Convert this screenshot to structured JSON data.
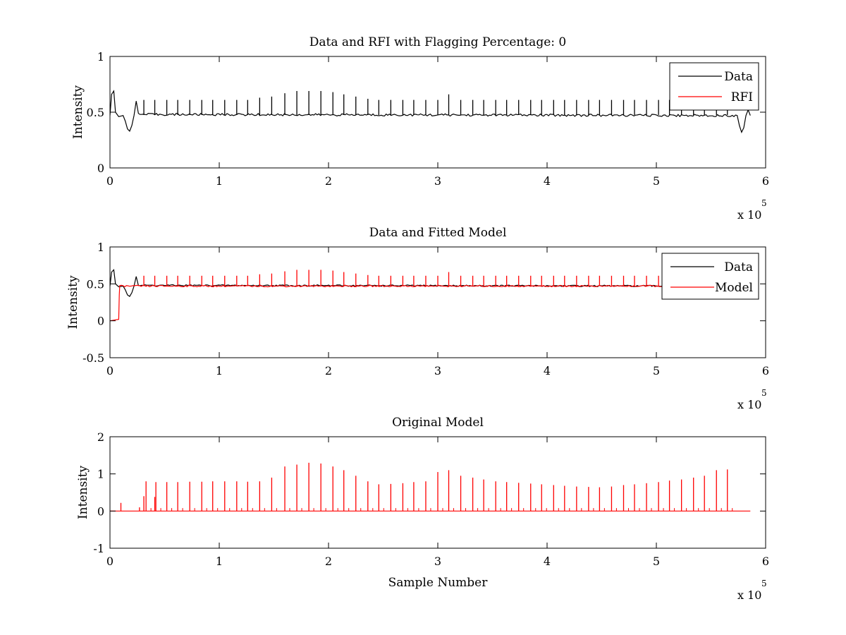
{
  "figure": {
    "background": "#ffffff",
    "colors": {
      "data": "#000000",
      "model": "#ff0000",
      "axes": "#000000"
    }
  },
  "chart_data": [
    {
      "type": "line",
      "title": "Data and RFI with Flagging Percentage: 0",
      "xlabel": "",
      "ylabel": "Intensity",
      "xlim": [
        0,
        600000
      ],
      "ylim": [
        0,
        1
      ],
      "xticks": [
        0,
        1,
        2,
        3,
        4,
        5,
        6
      ],
      "xtick_labels": [
        "0",
        "1",
        "2",
        "3",
        "4",
        "5",
        "6"
      ],
      "yticks": [
        0,
        0.5,
        1
      ],
      "ytick_labels": [
        "0",
        "0.5",
        "1"
      ],
      "x_exponent": {
        "base": "x 10",
        "power": "5"
      },
      "grid": false,
      "legend": {
        "location": "top-right",
        "entries": [
          "Data",
          "RFI"
        ]
      },
      "series": [
        {
          "name": "Data",
          "color": "#000000",
          "baseline": 0.475,
          "points": [
            [
              0,
              0.47
            ],
            [
              1500,
              0.66
            ],
            [
              3500,
              0.69
            ],
            [
              5000,
              0.5
            ],
            [
              8000,
              0.46
            ],
            [
              12000,
              0.47
            ],
            [
              14000,
              0.42
            ],
            [
              16000,
              0.35
            ],
            [
              18000,
              0.33
            ],
            [
              20000,
              0.38
            ],
            [
              22000,
              0.47
            ],
            [
              24000,
              0.6
            ],
            [
              26000,
              0.48
            ],
            [
              574000,
              0.47
            ],
            [
              576000,
              0.38
            ],
            [
              578000,
              0.32
            ],
            [
              580000,
              0.36
            ],
            [
              582000,
              0.47
            ],
            [
              584000,
              0.52
            ],
            [
              586000,
              0.47
            ]
          ],
          "spikes": [
            [
              31000,
              0.61
            ],
            [
              41000,
              0.61
            ],
            [
              52000,
              0.61
            ],
            [
              62000,
              0.61
            ],
            [
              73000,
              0.61
            ],
            [
              84000,
              0.61
            ],
            [
              94000,
              0.61
            ],
            [
              105000,
              0.61
            ],
            [
              116000,
              0.61
            ],
            [
              126000,
              0.61
            ],
            [
              137000,
              0.63
            ],
            [
              148000,
              0.64
            ],
            [
              160000,
              0.67
            ],
            [
              171000,
              0.69
            ],
            [
              182000,
              0.69
            ],
            [
              193000,
              0.69
            ],
            [
              204000,
              0.68
            ],
            [
              214000,
              0.66
            ],
            [
              225000,
              0.64
            ],
            [
              236000,
              0.62
            ],
            [
              246000,
              0.61
            ],
            [
              257000,
              0.61
            ],
            [
              268000,
              0.61
            ],
            [
              278000,
              0.61
            ],
            [
              289000,
              0.61
            ],
            [
              300000,
              0.61
            ],
            [
              310000,
              0.66
            ],
            [
              321000,
              0.61
            ],
            [
              332000,
              0.61
            ],
            [
              342000,
              0.61
            ],
            [
              353000,
              0.61
            ],
            [
              363000,
              0.61
            ],
            [
              374000,
              0.61
            ],
            [
              385000,
              0.61
            ],
            [
              395000,
              0.61
            ],
            [
              406000,
              0.61
            ],
            [
              416000,
              0.61
            ],
            [
              427000,
              0.61
            ],
            [
              438000,
              0.61
            ],
            [
              448000,
              0.61
            ],
            [
              459000,
              0.61
            ],
            [
              470000,
              0.61
            ],
            [
              480000,
              0.61
            ],
            [
              491000,
              0.61
            ],
            [
              502000,
              0.61
            ],
            [
              512000,
              0.61
            ],
            [
              523000,
              0.61
            ],
            [
              534000,
              0.61
            ],
            [
              544000,
              0.61
            ],
            [
              555000,
              0.61
            ],
            [
              565000,
              0.61
            ]
          ]
        },
        {
          "name": "RFI",
          "color": "#ff0000",
          "points": []
        }
      ]
    },
    {
      "type": "line",
      "title": "Data and Fitted Model",
      "xlabel": "",
      "ylabel": "Intensity",
      "xlim": [
        0,
        600000
      ],
      "ylim": [
        -0.5,
        1
      ],
      "xticks": [
        0,
        1,
        2,
        3,
        4,
        5,
        6
      ],
      "xtick_labels": [
        "0",
        "1",
        "2",
        "3",
        "4",
        "5",
        "6"
      ],
      "yticks": [
        -0.5,
        0,
        0.5,
        1
      ],
      "ytick_labels": [
        "-0.5",
        "0",
        "0.5",
        "1"
      ],
      "x_exponent": {
        "base": "x 10",
        "power": "5"
      },
      "grid": false,
      "legend": {
        "location": "top-right",
        "entries": [
          "Data",
          "Model"
        ]
      },
      "series": [
        {
          "name": "Data",
          "color": "#000000",
          "baseline": 0.475,
          "points": [
            [
              0,
              0.47
            ],
            [
              1500,
              0.66
            ],
            [
              3500,
              0.69
            ],
            [
              5000,
              0.5
            ],
            [
              8000,
              0.46
            ],
            [
              12000,
              0.47
            ],
            [
              14000,
              0.42
            ],
            [
              16000,
              0.35
            ],
            [
              18000,
              0.33
            ],
            [
              20000,
              0.38
            ],
            [
              22000,
              0.47
            ],
            [
              24000,
              0.6
            ],
            [
              26000,
              0.48
            ],
            [
              586000,
              0.47
            ]
          ]
        },
        {
          "name": "Model",
          "color": "#ff0000",
          "baseline": 0.47,
          "points": [
            [
              0,
              0.0
            ],
            [
              8000,
              0.02
            ],
            [
              8500,
              0.35
            ],
            [
              9000,
              0.47
            ],
            [
              586000,
              0.47
            ]
          ],
          "spikes": [
            [
              31000,
              0.61
            ],
            [
              41000,
              0.61
            ],
            [
              52000,
              0.61
            ],
            [
              62000,
              0.61
            ],
            [
              73000,
              0.61
            ],
            [
              84000,
              0.61
            ],
            [
              94000,
              0.61
            ],
            [
              105000,
              0.61
            ],
            [
              116000,
              0.61
            ],
            [
              126000,
              0.61
            ],
            [
              137000,
              0.63
            ],
            [
              148000,
              0.64
            ],
            [
              160000,
              0.67
            ],
            [
              171000,
              0.69
            ],
            [
              182000,
              0.69
            ],
            [
              193000,
              0.69
            ],
            [
              204000,
              0.68
            ],
            [
              214000,
              0.66
            ],
            [
              225000,
              0.64
            ],
            [
              236000,
              0.62
            ],
            [
              246000,
              0.61
            ],
            [
              257000,
              0.61
            ],
            [
              268000,
              0.61
            ],
            [
              278000,
              0.61
            ],
            [
              289000,
              0.61
            ],
            [
              300000,
              0.61
            ],
            [
              310000,
              0.66
            ],
            [
              321000,
              0.61
            ],
            [
              332000,
              0.61
            ],
            [
              342000,
              0.61
            ],
            [
              353000,
              0.61
            ],
            [
              363000,
              0.61
            ],
            [
              374000,
              0.61
            ],
            [
              385000,
              0.61
            ],
            [
              395000,
              0.61
            ],
            [
              406000,
              0.61
            ],
            [
              416000,
              0.61
            ],
            [
              427000,
              0.61
            ],
            [
              438000,
              0.61
            ],
            [
              448000,
              0.61
            ],
            [
              459000,
              0.61
            ],
            [
              470000,
              0.61
            ],
            [
              480000,
              0.61
            ],
            [
              491000,
              0.61
            ],
            [
              502000,
              0.61
            ],
            [
              512000,
              0.61
            ],
            [
              523000,
              0.61
            ],
            [
              534000,
              0.61
            ],
            [
              544000,
              0.61
            ],
            [
              555000,
              0.61
            ],
            [
              565000,
              0.61
            ]
          ]
        }
      ]
    },
    {
      "type": "line",
      "title": "Original Model",
      "xlabel": "Sample Number",
      "ylabel": "Intensity",
      "xlim": [
        0,
        600000
      ],
      "ylim": [
        -1,
        2
      ],
      "xticks": [
        0,
        1,
        2,
        3,
        4,
        5,
        6
      ],
      "xtick_labels": [
        "0",
        "1",
        "2",
        "3",
        "4",
        "5",
        "6"
      ],
      "yticks": [
        -1,
        0,
        1,
        2
      ],
      "ytick_labels": [
        "-1",
        "0",
        "1",
        "2"
      ],
      "x_exponent": {
        "base": "x 10",
        "power": "5"
      },
      "grid": false,
      "legend": null,
      "series": [
        {
          "name": "Model",
          "color": "#ff0000",
          "baseline": 0.0,
          "points": [
            [
              0,
              0
            ],
            [
              586000,
              0
            ]
          ],
          "spikes": [
            [
              10000,
              0.22
            ],
            [
              27000,
              0.1
            ],
            [
              31000,
              0.4
            ],
            [
              33000,
              0.8
            ],
            [
              41000,
              0.38
            ],
            [
              42000,
              0.78
            ],
            [
              52000,
              0.78
            ],
            [
              62000,
              0.78
            ],
            [
              73000,
              0.79
            ],
            [
              84000,
              0.79
            ],
            [
              94000,
              0.8
            ],
            [
              105000,
              0.8
            ],
            [
              116000,
              0.8
            ],
            [
              126000,
              0.79
            ],
            [
              137000,
              0.8
            ],
            [
              148000,
              0.9
            ],
            [
              160000,
              1.2
            ],
            [
              171000,
              1.25
            ],
            [
              182000,
              1.3
            ],
            [
              193000,
              1.28
            ],
            [
              204000,
              1.2
            ],
            [
              214000,
              1.1
            ],
            [
              225000,
              0.95
            ],
            [
              236000,
              0.8
            ],
            [
              246000,
              0.72
            ],
            [
              257000,
              0.73
            ],
            [
              268000,
              0.75
            ],
            [
              278000,
              0.78
            ],
            [
              289000,
              0.8
            ],
            [
              300000,
              1.05
            ],
            [
              310000,
              1.1
            ],
            [
              321000,
              0.95
            ],
            [
              332000,
              0.9
            ],
            [
              342000,
              0.85
            ],
            [
              353000,
              0.8
            ],
            [
              363000,
              0.78
            ],
            [
              374000,
              0.76
            ],
            [
              385000,
              0.74
            ],
            [
              395000,
              0.72
            ],
            [
              406000,
              0.7
            ],
            [
              416000,
              0.68
            ],
            [
              427000,
              0.66
            ],
            [
              438000,
              0.65
            ],
            [
              448000,
              0.64
            ],
            [
              459000,
              0.66
            ],
            [
              470000,
              0.7
            ],
            [
              480000,
              0.72
            ],
            [
              491000,
              0.75
            ],
            [
              502000,
              0.78
            ],
            [
              512000,
              0.82
            ],
            [
              523000,
              0.85
            ],
            [
              534000,
              0.9
            ],
            [
              544000,
              0.95
            ],
            [
              555000,
              1.1
            ],
            [
              565000,
              1.12
            ]
          ]
        }
      ]
    }
  ]
}
